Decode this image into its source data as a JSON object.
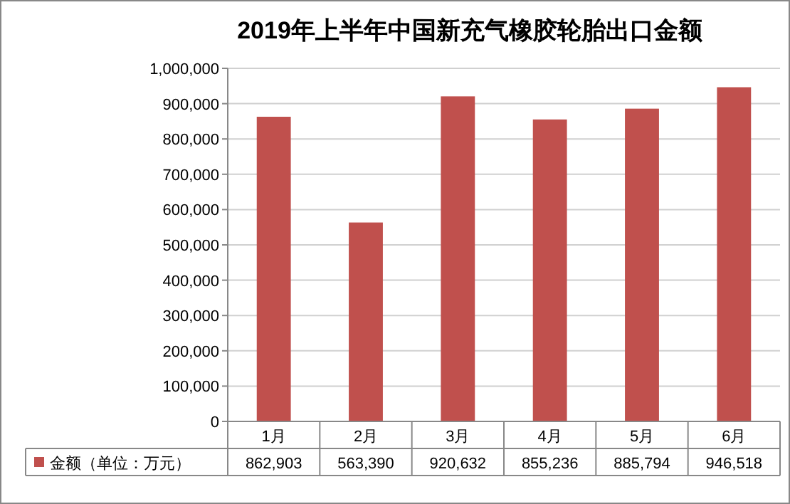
{
  "chart_data": {
    "type": "bar",
    "title": "2019年上半年中国新充气橡胶轮胎出口金额",
    "categories": [
      "1月",
      "2月",
      "3月",
      "4月",
      "5月",
      "6月"
    ],
    "series": [
      {
        "name": "金额（单位：万元）",
        "color": "#c0504d",
        "values": [
          862903,
          563390,
          920632,
          855236,
          885794,
          946518
        ],
        "value_labels": [
          "862,903",
          "563,390",
          "920,632",
          "855,236",
          "885,794",
          "946,518"
        ]
      }
    ],
    "ylim": [
      0,
      1000000
    ],
    "yticks": [
      0,
      {
        "value": 100000,
        "label": "100,000"
      },
      {
        "value": 200000,
        "label": "200,000"
      },
      {
        "value": 300000,
        "label": "300,000"
      },
      {
        "value": 400000,
        "label": "400,000"
      },
      {
        "value": 500000,
        "label": "500,000"
      },
      {
        "value": 600000,
        "label": "600,000"
      },
      {
        "value": 700000,
        "label": "700,000"
      },
      {
        "value": 800000,
        "label": "800,000"
      },
      {
        "value": 900000,
        "label": "900,000"
      },
      {
        "value": 1000000,
        "label": "1,000,000"
      }
    ],
    "grid": "y",
    "legend": "bottom"
  }
}
